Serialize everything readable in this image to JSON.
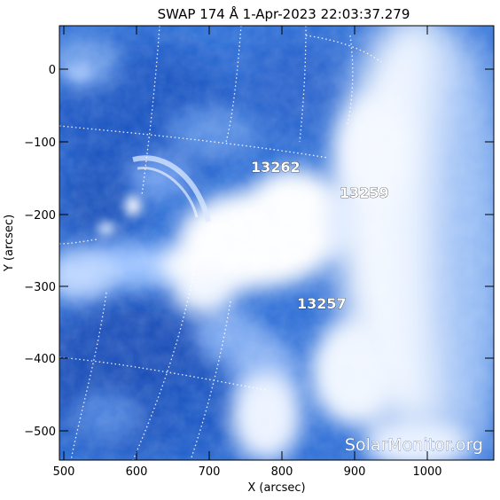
{
  "title": "SWAP  174 Å   1-Apr-2023  22:03:37.279",
  "axes": {
    "xlabel": "X (arcsec)",
    "ylabel": "Y (arcsec)",
    "x_ticks": [
      "500",
      "600",
      "700",
      "800",
      "900",
      "1000"
    ],
    "y_ticks": [
      "0",
      "−100",
      "−200",
      "−300",
      "−400",
      "−500"
    ]
  },
  "regions": [
    "13262",
    "13259",
    "13257"
  ],
  "watermark": "SolarMonitor.org",
  "colors": {
    "deep_blue": "#0b3fa8",
    "mid_blue": "#3f7ee0",
    "light_blue": "#9cc3ff",
    "flare_white": "#ffffff",
    "frame": "#000000"
  }
}
